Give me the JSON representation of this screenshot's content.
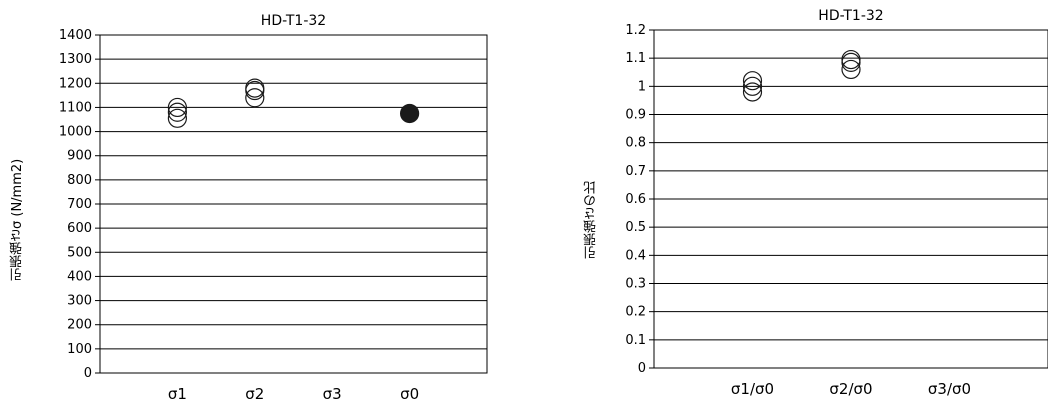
{
  "chart_data": [
    {
      "type": "scatter",
      "title": "HD-T1-32",
      "ylabel": "引張強さσ (N/mm2)",
      "xlabel": "",
      "categories": [
        "σ1",
        "σ2",
        "σ3",
        "σ0"
      ],
      "ylim": [
        0,
        1400
      ],
      "yticks": [
        "0",
        "100",
        "200",
        "300",
        "400",
        "500",
        "600",
        "700",
        "800",
        "900",
        "1000",
        "1100",
        "1200",
        "1300",
        "1400"
      ],
      "grid": true,
      "series": [
        {
          "marker": "open-circle",
          "points": [
            {
              "x": "σ1",
              "y": 1100
            },
            {
              "x": "σ1",
              "y": 1080
            },
            {
              "x": "σ1",
              "y": 1055
            },
            {
              "x": "σ2",
              "y": 1180
            },
            {
              "x": "σ2",
              "y": 1170
            },
            {
              "x": "σ2",
              "y": 1140
            }
          ]
        },
        {
          "marker": "filled-circle",
          "points": [
            {
              "x": "σ0",
              "y": 1075
            }
          ]
        }
      ]
    },
    {
      "type": "scatter",
      "title": "HD-T1-32",
      "ylabel": "引張強さの比",
      "xlabel": "",
      "categories": [
        "σ1/σ0",
        "σ2/σ0",
        "σ3/σ0"
      ],
      "ylim": [
        0,
        1.2
      ],
      "yticks": [
        "0",
        "0.1",
        "0.2",
        "0.3",
        "0.4",
        "0.5",
        "0.6",
        "0.7",
        "0.8",
        "0.9",
        "1",
        "1.1",
        "1.2"
      ],
      "grid": true,
      "series": [
        {
          "marker": "open-circle",
          "points": [
            {
              "x": "σ1/σ0",
              "y": 1.02
            },
            {
              "x": "σ1/σ0",
              "y": 1.0
            },
            {
              "x": "σ1/σ0",
              "y": 0.98
            },
            {
              "x": "σ2/σ0",
              "y": 1.095
            },
            {
              "x": "σ2/σ0",
              "y": 1.085
            },
            {
              "x": "σ2/σ0",
              "y": 1.06
            }
          ]
        }
      ]
    }
  ]
}
